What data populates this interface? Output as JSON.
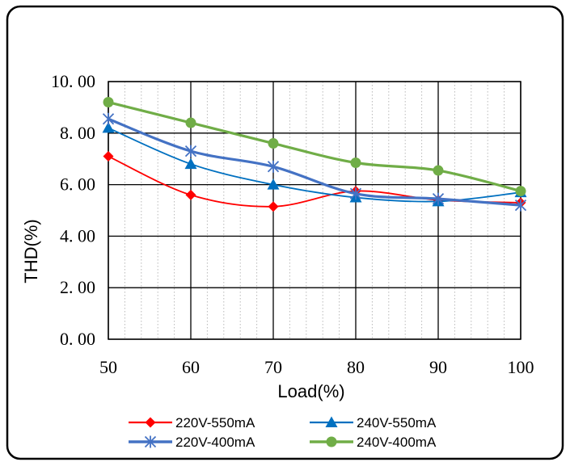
{
  "chart_data": {
    "type": "line",
    "xlabel": "Load(%)",
    "ylabel": "THD(%)",
    "x": [
      50,
      60,
      70,
      80,
      90,
      100
    ],
    "xlim": [
      50,
      100
    ],
    "ylim": [
      0,
      10
    ],
    "x_tick_labels": [
      "50",
      "60",
      "70",
      "80",
      "90",
      "100"
    ],
    "y_ticks": [
      0,
      2,
      4,
      6,
      8,
      10
    ],
    "y_tick_labels": [
      "0. 00",
      "2. 00",
      "4. 00",
      "6. 00",
      "8. 00",
      "10. 00"
    ],
    "grid": true,
    "legend_position": "bottom",
    "series": [
      {
        "name": "220V-550mA",
        "color": "#ff0000",
        "marker": "diamond",
        "values": [
          7.1,
          5.6,
          5.15,
          5.75,
          5.4,
          5.3
        ]
      },
      {
        "name": "240V-550mA",
        "color": "#0070c0",
        "marker": "triangle",
        "values": [
          8.2,
          6.8,
          6.0,
          5.5,
          5.35,
          5.7
        ]
      },
      {
        "name": "220V-400mA",
        "color": "#4472c4",
        "marker": "star",
        "values": [
          8.55,
          7.3,
          6.7,
          5.65,
          5.45,
          5.2
        ]
      },
      {
        "name": "240V-400mA",
        "color": "#70ad47",
        "marker": "circle",
        "values": [
          9.2,
          8.4,
          7.6,
          6.85,
          6.55,
          5.75
        ]
      }
    ]
  }
}
